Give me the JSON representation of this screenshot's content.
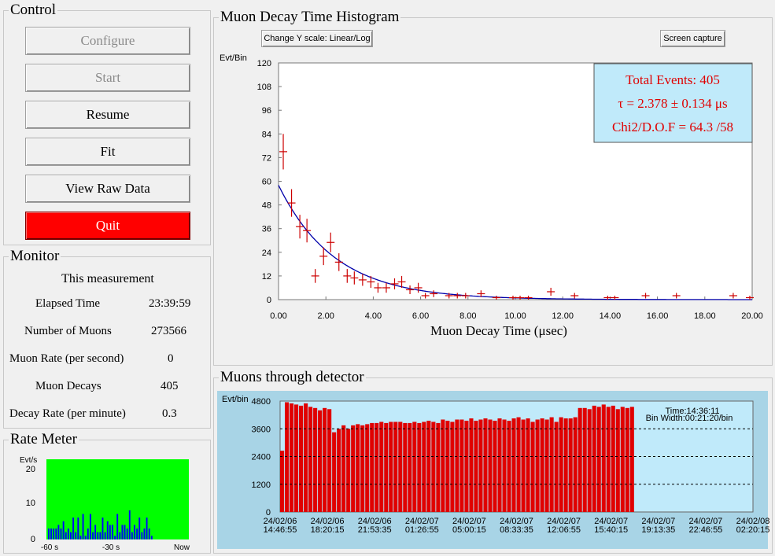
{
  "control": {
    "title": "Control",
    "buttons": {
      "configure": "Configure",
      "start": "Start",
      "resume": "Resume",
      "fit": "Fit",
      "view_raw": "View Raw Data",
      "quit": "Quit"
    }
  },
  "monitor": {
    "title": "Monitor",
    "heading": "This measurement",
    "rows": [
      {
        "label": "Elapsed Time",
        "value": "23:39:59"
      },
      {
        "label": "Number of Muons",
        "value": "273566"
      },
      {
        "label": "Muon Rate (per second)",
        "value": "0"
      },
      {
        "label": "Muon Decays",
        "value": "405"
      },
      {
        "label": "Decay Rate (per minute)",
        "value": "0.3"
      }
    ]
  },
  "rate_meter": {
    "title": "Rate Meter",
    "ylabel": "Evt/s",
    "yticks": [
      "20",
      "10",
      "0"
    ],
    "xticks": [
      "-60 s",
      "-30 s",
      "Now"
    ],
    "bg_color": "#00ff00",
    "bar_color": "#0000ff",
    "values": [
      3,
      3,
      3,
      3,
      4,
      3,
      5,
      2,
      3,
      2,
      6,
      2,
      6,
      1,
      7,
      1,
      3,
      7,
      2,
      4,
      2,
      2,
      6,
      2,
      5,
      4,
      4,
      1,
      7,
      2,
      4,
      4,
      3,
      8,
      2,
      4,
      3,
      6,
      2,
      3,
      6,
      3,
      1
    ]
  },
  "histogram": {
    "title": "Muon Decay Time Histogram",
    "scale_button": "Change Y scale: Linear/Log",
    "capture_button": "Screen capture",
    "info": {
      "total": "Total Events: 405",
      "tau": "τ = 2.378 ± 0.134 μs",
      "chi2": "Chi2/D.O.F = 64.3 /58"
    },
    "colors": {
      "data": "#cc0000",
      "fit": "#0000aa",
      "info_bg": "#c0eafa",
      "info_text": "#e00000"
    }
  },
  "detector": {
    "title": "Muons through detector",
    "time_label": "Time:14:36:11",
    "bin_label": "Bin Width:00:21:20/bin",
    "colors": {
      "frame": "#a8d4e6",
      "plot": "#c0eafa",
      "bar": "#e00000"
    }
  },
  "chart_data": [
    {
      "type": "scatter",
      "title": "Muon Decay Time Histogram",
      "xlabel": "Muon Decay Time (μsec)",
      "ylabel": "Evt/Bin",
      "xlim": [
        0,
        20
      ],
      "ylim": [
        0,
        120
      ],
      "xticks": [
        "0.00",
        "2.00",
        "4.00",
        "6.00",
        "8.00",
        "10.00",
        "12.00",
        "14.00",
        "16.00",
        "18.00",
        "20.00"
      ],
      "yticks": [
        "0",
        "12",
        "24",
        "36",
        "48",
        "60",
        "72",
        "84",
        "96",
        "108",
        "120"
      ],
      "grid": false,
      "fit": {
        "model": "exponential",
        "amplitude": 58,
        "tau": 2.378
      },
      "points": [
        {
          "x": 0.2,
          "y": 75,
          "e": 9
        },
        {
          "x": 0.55,
          "y": 49,
          "e": 7
        },
        {
          "x": 0.9,
          "y": 37,
          "e": 6
        },
        {
          "x": 1.2,
          "y": 35,
          "e": 6
        },
        {
          "x": 1.55,
          "y": 12,
          "e": 3.5
        },
        {
          "x": 1.9,
          "y": 22,
          "e": 4.5
        },
        {
          "x": 2.2,
          "y": 29,
          "e": 5
        },
        {
          "x": 2.55,
          "y": 19,
          "e": 4.5
        },
        {
          "x": 2.9,
          "y": 12,
          "e": 3.5
        },
        {
          "x": 3.2,
          "y": 11,
          "e": 3.3
        },
        {
          "x": 3.55,
          "y": 10,
          "e": 3
        },
        {
          "x": 3.9,
          "y": 9,
          "e": 3
        },
        {
          "x": 4.2,
          "y": 6,
          "e": 2.5
        },
        {
          "x": 4.55,
          "y": 6,
          "e": 2.5
        },
        {
          "x": 4.9,
          "y": 8,
          "e": 2.8
        },
        {
          "x": 5.2,
          "y": 9,
          "e": 3
        },
        {
          "x": 5.55,
          "y": 5,
          "e": 2.2
        },
        {
          "x": 5.9,
          "y": 6,
          "e": 2.5
        },
        {
          "x": 6.2,
          "y": 2,
          "e": 1.4
        },
        {
          "x": 6.55,
          "y": 3,
          "e": 1.7
        },
        {
          "x": 7.2,
          "y": 2,
          "e": 1.4
        },
        {
          "x": 7.55,
          "y": 2,
          "e": 1.4
        },
        {
          "x": 7.9,
          "y": 2,
          "e": 1.4
        },
        {
          "x": 8.55,
          "y": 3,
          "e": 1.7
        },
        {
          "x": 9.2,
          "y": 1,
          "e": 1
        },
        {
          "x": 9.9,
          "y": 1,
          "e": 1
        },
        {
          "x": 10.2,
          "y": 1,
          "e": 1
        },
        {
          "x": 10.55,
          "y": 1,
          "e": 1
        },
        {
          "x": 11.5,
          "y": 4,
          "e": 2
        },
        {
          "x": 12.5,
          "y": 2,
          "e": 1.4
        },
        {
          "x": 13.9,
          "y": 1,
          "e": 1
        },
        {
          "x": 14.2,
          "y": 1,
          "e": 1
        },
        {
          "x": 15.5,
          "y": 2,
          "e": 1.4
        },
        {
          "x": 16.8,
          "y": 2,
          "e": 1.4
        },
        {
          "x": 19.2,
          "y": 2,
          "e": 1.4
        },
        {
          "x": 19.9,
          "y": 1,
          "e": 1
        }
      ]
    },
    {
      "type": "bar",
      "title": "Muons through detector",
      "ylabel": "Evt/bin",
      "ylim": [
        0,
        4800
      ],
      "yticks": [
        "4800",
        "3600",
        "2400",
        "1200",
        "0"
      ],
      "xticks": [
        {
          "date": "24/02/06",
          "time": "14:46:55"
        },
        {
          "date": "24/02/06",
          "time": "18:20:15"
        },
        {
          "date": "24/02/06",
          "time": "21:53:35"
        },
        {
          "date": "24/02/07",
          "time": "01:26:55"
        },
        {
          "date": "24/02/07",
          "time": "05:00:15"
        },
        {
          "date": "24/02/07",
          "time": "08:33:35"
        },
        {
          "date": "24/02/07",
          "time": "12:06:55"
        },
        {
          "date": "24/02/07",
          "time": "15:40:15"
        },
        {
          "date": "24/02/07",
          "time": "19:13:35"
        },
        {
          "date": "24/02/07",
          "time": "22:46:55"
        },
        {
          "date": "24/02/08",
          "time": "02:20:15"
        }
      ],
      "total_bins": 100,
      "grid": "dashed-horizontal",
      "values": [
        2650,
        4750,
        4700,
        4650,
        4600,
        4700,
        4550,
        4500,
        4400,
        4500,
        4450,
        3450,
        3600,
        3750,
        3600,
        3750,
        3800,
        3750,
        3800,
        3850,
        3850,
        3900,
        3850,
        3900,
        3900,
        3900,
        3850,
        3850,
        3900,
        3850,
        3900,
        3950,
        3900,
        3850,
        4000,
        3950,
        3900,
        4000,
        4000,
        3950,
        4050,
        3950,
        4000,
        4050,
        4000,
        3950,
        4050,
        4000,
        3950,
        4050,
        4100,
        4000,
        4050,
        3900,
        4000,
        4050,
        4000,
        4100,
        3900,
        4100,
        4050,
        4050,
        4100,
        4500,
        4500,
        4450,
        4600,
        4550,
        4650,
        4550,
        4600,
        4450,
        4550,
        4500,
        4550
      ]
    }
  ]
}
